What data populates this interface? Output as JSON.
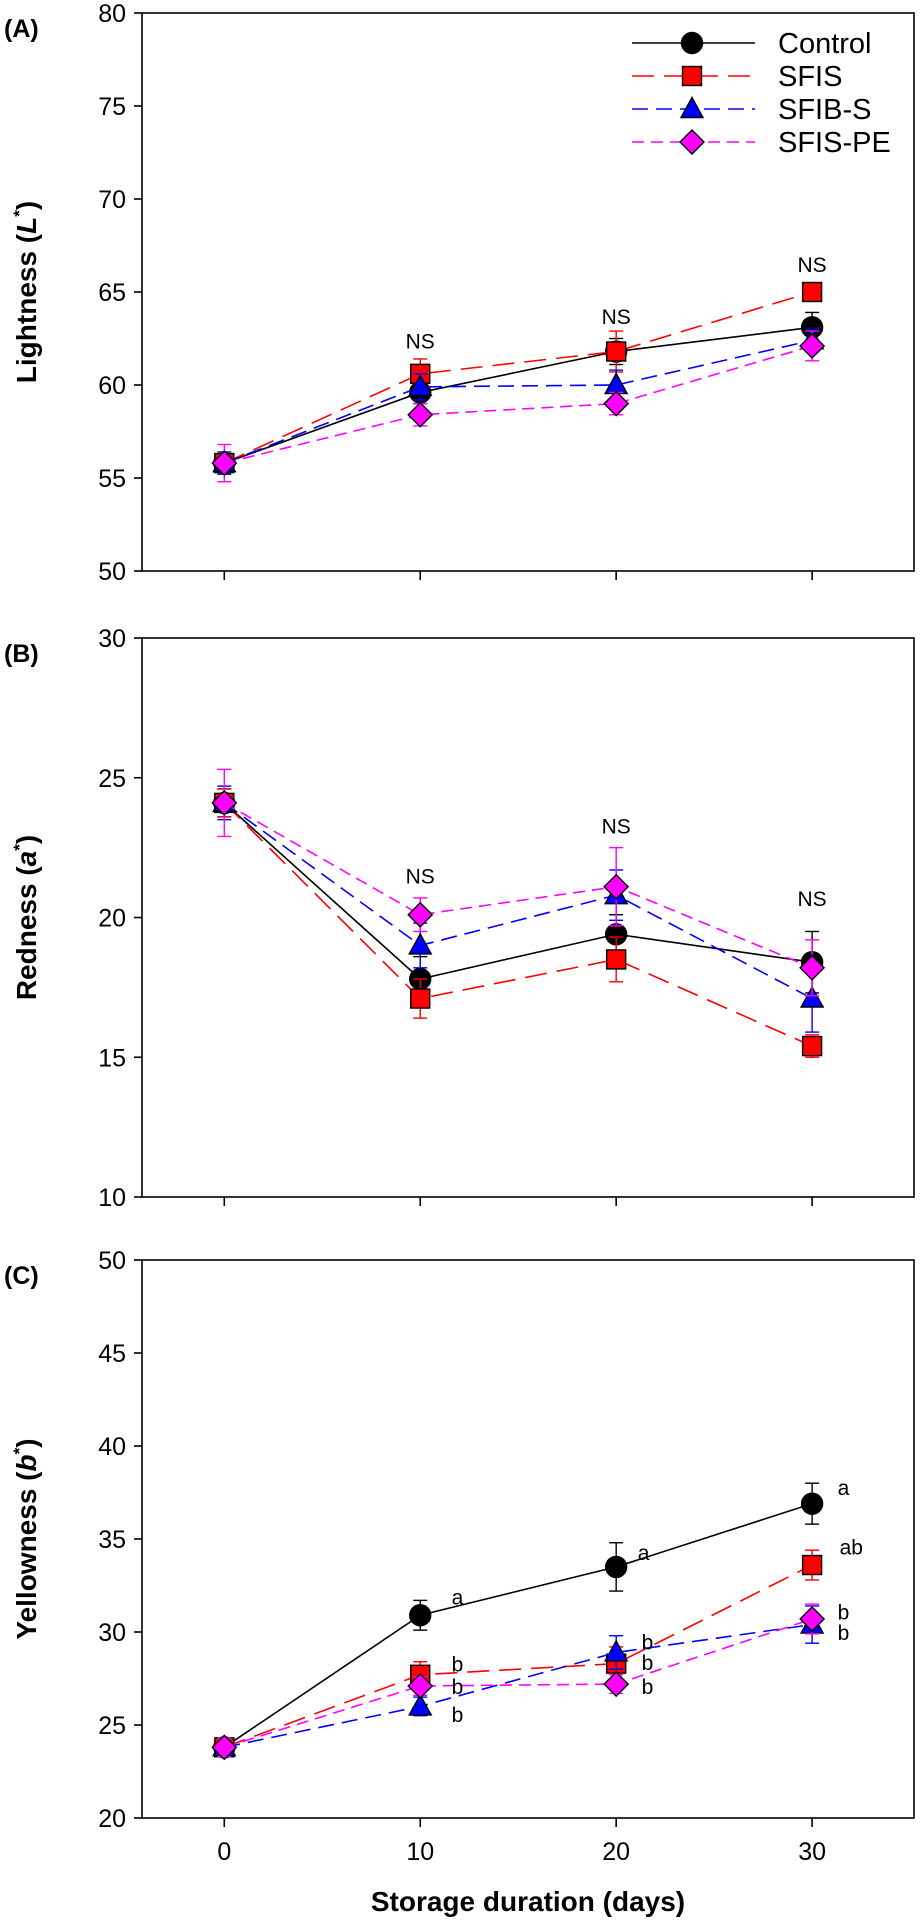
{
  "xlabel": "Storage duration (days)",
  "chart_data": [
    {
      "type": "line",
      "panel_label": "(A)",
      "ylabel_parts": [
        "Lightness (",
        "L",
        "*",
        ")"
      ],
      "ylim": [
        50,
        80
      ],
      "yticks": [
        50,
        55,
        60,
        65,
        70,
        75,
        80
      ],
      "xlim": [
        -4.2,
        35.2
      ],
      "x": [
        0,
        10,
        20,
        30
      ],
      "xticks": [
        0,
        10,
        20,
        30
      ],
      "show_xticklabels": false,
      "legend": {
        "placement": "top-right"
      },
      "series": [
        {
          "name": "Control",
          "marker": "circle",
          "color": "#000000",
          "fill": "#000000",
          "dash": "",
          "values": [
            55.8,
            59.6,
            61.8,
            63.1
          ],
          "err": [
            0.5,
            0.6,
            0.7,
            0.8
          ]
        },
        {
          "name": "SFIS",
          "marker": "square",
          "color": "#ff0000",
          "fill": "#ff0000",
          "dash": "22,10",
          "values": [
            55.8,
            60.6,
            61.8,
            65.0
          ],
          "err": [
            0.5,
            0.8,
            1.1,
            0.4
          ]
        },
        {
          "name": "SFIB-S",
          "marker": "triangle",
          "color": "#0000ff",
          "fill": "#0000ff",
          "dash": "16,8",
          "values": [
            55.8,
            59.9,
            60.0,
            62.4
          ],
          "err": [
            0.6,
            0.7,
            0.8,
            0.6
          ]
        },
        {
          "name": "SFIS-PE",
          "marker": "diamond",
          "color": "#ff00ff",
          "fill": "#ff00ff",
          "dash": "12,7",
          "values": [
            55.8,
            58.4,
            59.0,
            62.1
          ],
          "err": [
            1.0,
            0.6,
            0.6,
            0.8
          ]
        }
      ],
      "annotations": [
        {
          "text": "NS",
          "x": 10,
          "y": 62.4
        },
        {
          "text": "NS",
          "x": 20,
          "y": 63.7
        },
        {
          "text": "NS",
          "x": 30,
          "y": 66.5
        }
      ]
    },
    {
      "type": "line",
      "panel_label": "(B)",
      "ylabel_parts": [
        "Redness (",
        "a",
        "*",
        ")"
      ],
      "ylim": [
        10,
        30
      ],
      "yticks": [
        10,
        15,
        20,
        25,
        30
      ],
      "xlim": [
        -4.2,
        35.2
      ],
      "x": [
        0,
        10,
        20,
        30
      ],
      "xticks": [
        0,
        10,
        20,
        30
      ],
      "show_xticklabels": false,
      "series": [
        {
          "name": "Control",
          "marker": "circle",
          "color": "#000000",
          "fill": "#000000",
          "dash": "",
          "values": [
            24.1,
            17.8,
            19.4,
            18.4
          ],
          "err": [
            0.5,
            0.8,
            0.7,
            1.1
          ]
        },
        {
          "name": "SFIS",
          "marker": "square",
          "color": "#ff0000",
          "fill": "#ff0000",
          "dash": "22,10",
          "values": [
            24.1,
            17.1,
            18.5,
            15.4
          ],
          "err": [
            0.5,
            0.7,
            0.8,
            0.4
          ]
        },
        {
          "name": "SFIB-S",
          "marker": "triangle",
          "color": "#0000ff",
          "fill": "#0000ff",
          "dash": "16,8",
          "values": [
            24.1,
            19.0,
            20.8,
            17.1
          ],
          "err": [
            0.6,
            0.8,
            0.9,
            1.2
          ]
        },
        {
          "name": "SFIS-PE",
          "marker": "diamond",
          "color": "#ff00ff",
          "fill": "#ff00ff",
          "dash": "12,7",
          "values": [
            24.1,
            20.1,
            21.1,
            18.2
          ],
          "err": [
            1.2,
            0.6,
            1.4,
            1.0
          ]
        }
      ],
      "annotations": [
        {
          "text": "NS",
          "x": 10,
          "y": 21.5
        },
        {
          "text": "NS",
          "x": 20,
          "y": 23.3
        },
        {
          "text": "NS",
          "x": 30,
          "y": 20.7
        }
      ]
    },
    {
      "type": "line",
      "panel_label": "(C)",
      "ylabel_parts": [
        "Yellowness (",
        "b",
        "*",
        ")"
      ],
      "ylim": [
        20,
        50
      ],
      "yticks": [
        20,
        25,
        30,
        35,
        40,
        45,
        50
      ],
      "xlim": [
        -4.2,
        35.2
      ],
      "x": [
        0,
        10,
        20,
        30
      ],
      "xticks": [
        0,
        10,
        20,
        30
      ],
      "show_xticklabels": true,
      "series": [
        {
          "name": "Control",
          "marker": "circle",
          "color": "#000000",
          "fill": "#000000",
          "dash": "",
          "values": [
            23.8,
            30.9,
            33.5,
            36.9
          ],
          "err": [
            0.5,
            0.8,
            1.3,
            1.1
          ]
        },
        {
          "name": "SFIS",
          "marker": "square",
          "color": "#ff0000",
          "fill": "#ff0000",
          "dash": "22,10",
          "values": [
            23.8,
            27.7,
            28.3,
            33.6
          ],
          "err": [
            0.5,
            0.7,
            0.9,
            0.8
          ]
        },
        {
          "name": "SFIB-S",
          "marker": "triangle",
          "color": "#0000ff",
          "fill": "#0000ff",
          "dash": "16,8",
          "values": [
            23.8,
            26.0,
            28.9,
            30.4
          ],
          "err": [
            0.5,
            0.5,
            0.9,
            1.0
          ]
        },
        {
          "name": "SFIS-PE",
          "marker": "diamond",
          "color": "#ff00ff",
          "fill": "#ff00ff",
          "dash": "12,7",
          "values": [
            23.8,
            27.1,
            27.2,
            30.7
          ],
          "err": [
            0.5,
            0.5,
            0.5,
            0.8
          ]
        }
      ],
      "annotations": [
        {
          "text": "a",
          "x": 11.9,
          "y": 31.9
        },
        {
          "text": "b",
          "x": 11.9,
          "y": 28.3
        },
        {
          "text": "b",
          "x": 11.9,
          "y": 27.1
        },
        {
          "text": "b",
          "x": 11.9,
          "y": 25.6
        },
        {
          "text": "a",
          "x": 21.4,
          "y": 34.3
        },
        {
          "text": "b",
          "x": 21.6,
          "y": 29.5
        },
        {
          "text": "b",
          "x": 21.6,
          "y": 28.4
        },
        {
          "text": "b",
          "x": 21.6,
          "y": 27.1
        },
        {
          "text": "a",
          "x": 31.6,
          "y": 37.8
        },
        {
          "text": "ab",
          "x": 32.0,
          "y": 34.6
        },
        {
          "text": "b",
          "x": 31.6,
          "y": 31.1
        },
        {
          "text": "b",
          "x": 31.6,
          "y": 30.0
        }
      ]
    }
  ]
}
